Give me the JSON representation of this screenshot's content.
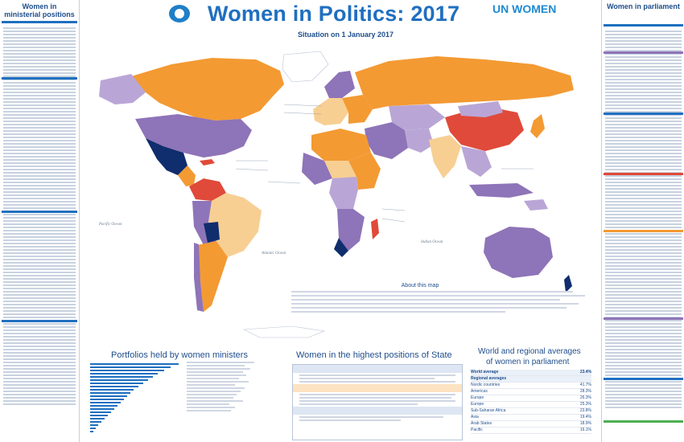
{
  "header": {
    "title": "Women in Politics: 2017",
    "subtitle": "Situation on 1 January 2017",
    "ipu_logo": "ipu-globe-icon",
    "unw_logo_word": "UN WOMEN"
  },
  "left_column": {
    "title_line1": "Women in",
    "title_line2": "ministerial positions"
  },
  "right_column": {
    "title": "Women in parliament"
  },
  "map": {
    "ocean_labels": [
      "Pacific Ocean",
      "Atlantic Ocean",
      "Indian Ocean"
    ],
    "about_title": "About this map",
    "colors": {
      "orange": "#f39a33",
      "purple": "#8e74b8",
      "navy": "#102d6e",
      "lavender": "#b9a6d6",
      "tan": "#f7cf93",
      "red": "#e04a3a",
      "white": "#ffffff",
      "ocean": "#ffffff"
    }
  },
  "sections": {
    "portfolios_title": "Portfolios held by women ministers",
    "state_title": "Women in the highest positions of State",
    "averages_title_line1": "World and regional averages",
    "averages_title_line2": "of women in parliament",
    "averages_rows": [
      {
        "label": "World average",
        "value": "23.4%"
      },
      {
        "label": "Regional averages",
        "value": ""
      },
      {
        "label": "Nordic countries",
        "value": "41.7%"
      },
      {
        "label": "Americas",
        "value": "28.3%"
      },
      {
        "label": "Europe",
        "value": "26.3%"
      },
      {
        "label": "Europe",
        "value": "25.3%"
      },
      {
        "label": "Sub-Saharan Africa",
        "value": "23.8%"
      },
      {
        "label": "Asia",
        "value": "19.4%"
      },
      {
        "label": "Arab States",
        "value": "18.9%"
      },
      {
        "label": "Pacific",
        "value": "16.1%"
      }
    ]
  }
}
